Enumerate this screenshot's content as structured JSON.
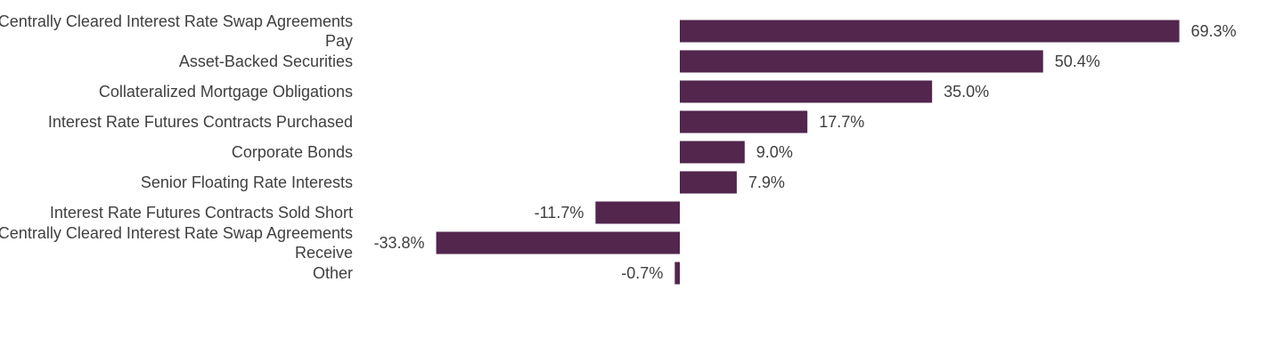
{
  "chart_data": {
    "type": "bar",
    "orientation": "horizontal",
    "categories": [
      [
        "Centrally Cleared Interest Rate Swap Agreements",
        "Pay"
      ],
      [
        "Asset-Backed Securities"
      ],
      [
        "Collateralized Mortgage Obligations"
      ],
      [
        "Interest Rate Futures Contracts Purchased"
      ],
      [
        "Corporate Bonds"
      ],
      [
        "Senior Floating Rate Interests"
      ],
      [
        "Interest Rate Futures Contracts Sold Short"
      ],
      [
        "Centrally Cleared Interest Rate Swap Agreements",
        "Receive"
      ],
      [
        "Other"
      ]
    ],
    "values": [
      69.3,
      50.4,
      35.0,
      17.7,
      9.0,
      7.9,
      -11.7,
      -33.8,
      -0.7
    ],
    "value_labels": [
      "69.3%",
      "50.4%",
      "35.0%",
      "17.7%",
      "9.0%",
      "7.9%",
      "-11.7%",
      "-33.8%",
      "-0.7%"
    ],
    "bar_color": "#52264d",
    "text_color": "#3f3f3f",
    "grid": false,
    "legend": "none"
  }
}
